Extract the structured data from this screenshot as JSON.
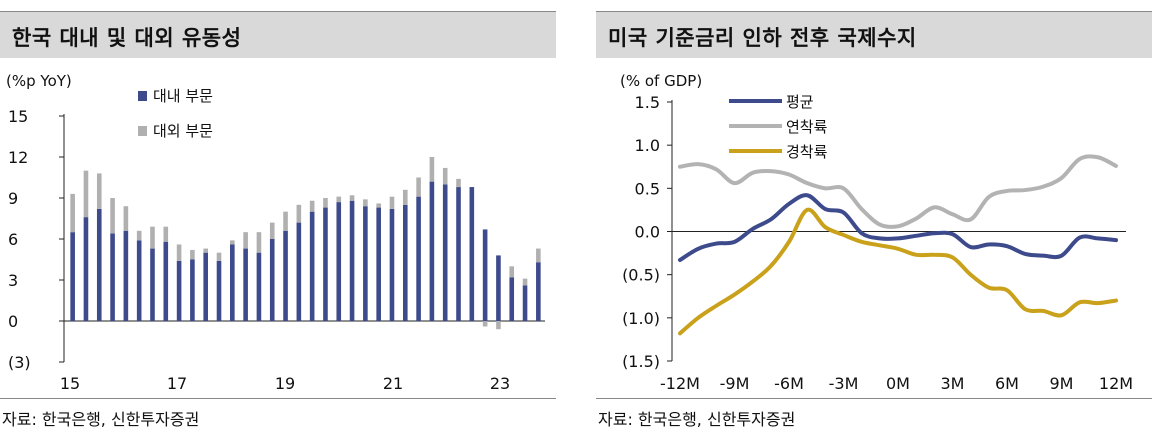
{
  "panels": {
    "left": {
      "title": "한국 대내 및 대외 유동성",
      "source": "자료: 한국은행, 신한투자증권"
    },
    "right": {
      "title": "미국 기준금리 인하 전후 국제수지",
      "source": "자료: 한국은행, 신한투자증권"
    }
  },
  "colors": {
    "domestic": "#3d4a8c",
    "external": "#b0b0b0",
    "average": "#3d4a8c",
    "soft": "#b3b3b3",
    "hard": "#c9a11b"
  },
  "chart_data": [
    {
      "type": "bar",
      "stacked": true,
      "ylabel": "(%p YoY)",
      "ylim": [
        -3,
        15
      ],
      "y_ticks": [
        "15",
        "12",
        "9",
        "6",
        "3",
        "0",
        "(3)"
      ],
      "x_ticks": [
        "15",
        "17",
        "19",
        "21",
        "23"
      ],
      "legend": [
        "대내 부문",
        "대외 부문"
      ],
      "legend_position": "top-left",
      "series": [
        {
          "name": "대내 부문",
          "values": [
            6.5,
            7.6,
            8.2,
            6.4,
            6.6,
            5.9,
            5.3,
            5.8,
            4.4,
            4.5,
            5.0,
            4.4,
            5.6,
            5.3,
            5.0,
            6.0,
            6.6,
            7.2,
            8.0,
            8.3,
            8.7,
            8.8,
            8.4,
            8.3,
            8.2,
            8.5,
            9.1,
            10.2,
            10.0,
            9.8,
            9.8,
            6.7,
            4.8,
            3.2,
            2.6,
            4.3
          ]
        },
        {
          "name": "대외 부문",
          "values": [
            2.8,
            3.4,
            2.6,
            2.6,
            1.8,
            0.7,
            1.6,
            1.1,
            1.2,
            0.7,
            0.3,
            0.6,
            0.3,
            1.2,
            1.5,
            1.2,
            1.4,
            1.3,
            0.8,
            0.7,
            0.4,
            0.4,
            0.5,
            0.3,
            0.9,
            1.1,
            1.4,
            1.8,
            1.2,
            0.6,
            0.0,
            -0.4,
            -0.6,
            0.8,
            0.5,
            1.0
          ]
        }
      ]
    },
    {
      "type": "line",
      "ylabel": "(% of GDP)",
      "ylim": [
        -1.5,
        1.5
      ],
      "y_ticks": [
        "1.5",
        "1.0",
        "0.5",
        "0.0",
        "(0.5)",
        "(1.0)",
        "(1.5)"
      ],
      "x_ticks": [
        "-12M",
        "-9M",
        "-6M",
        "-3M",
        "0M",
        "3M",
        "6M",
        "9M",
        "12M"
      ],
      "legend": [
        "평균",
        "연착륙",
        "경착륙"
      ],
      "legend_position": "top-left",
      "x": [
        -12,
        -11,
        -10,
        -9,
        -8,
        -7,
        -6,
        -5,
        -4,
        -3,
        -2,
        -1,
        0,
        1,
        2,
        3,
        4,
        5,
        6,
        7,
        8,
        9,
        10,
        11,
        12
      ],
      "series": [
        {
          "name": "평균",
          "values": [
            -0.33,
            -0.2,
            -0.14,
            -0.12,
            0.03,
            0.14,
            0.32,
            0.42,
            0.26,
            0.22,
            -0.02,
            -0.08,
            -0.08,
            -0.05,
            -0.02,
            -0.03,
            -0.18,
            -0.15,
            -0.17,
            -0.26,
            -0.28,
            -0.28,
            -0.07,
            -0.08,
            -0.1
          ]
        },
        {
          "name": "연착륙",
          "values": [
            0.75,
            0.78,
            0.72,
            0.56,
            0.68,
            0.7,
            0.66,
            0.56,
            0.5,
            0.5,
            0.26,
            0.08,
            0.06,
            0.15,
            0.28,
            0.2,
            0.14,
            0.4,
            0.47,
            0.48,
            0.52,
            0.62,
            0.84,
            0.86,
            0.76
          ]
        },
        {
          "name": "경착륙",
          "values": [
            -1.18,
            -1.0,
            -0.86,
            -0.73,
            -0.58,
            -0.4,
            -0.12,
            0.25,
            0.05,
            -0.04,
            -0.12,
            -0.16,
            -0.2,
            -0.27,
            -0.27,
            -0.3,
            -0.5,
            -0.65,
            -0.68,
            -0.9,
            -0.92,
            -0.97,
            -0.82,
            -0.83,
            -0.8
          ]
        }
      ]
    }
  ]
}
